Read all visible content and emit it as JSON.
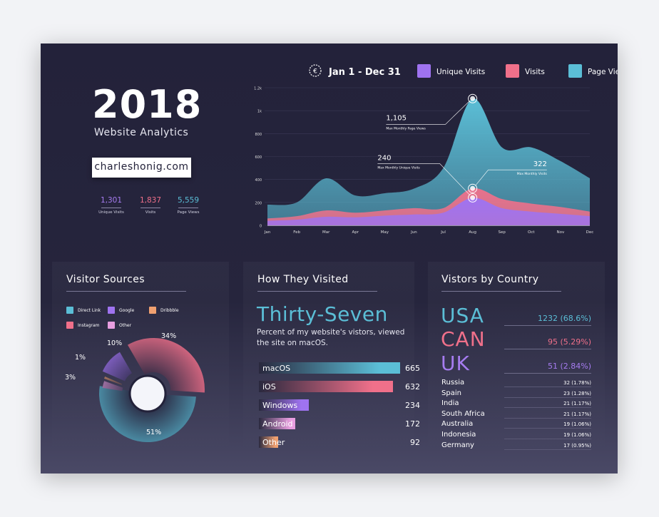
{
  "header": {
    "year": "2018",
    "subtitle": "Website Analytics",
    "domain": "charleshonig.com",
    "date_range": "Jan 1 - Dec 31"
  },
  "summary": [
    {
      "value": "1,301",
      "label": "Unique Visits",
      "color": "#a67cf0"
    },
    {
      "value": "1,837",
      "label": "Visits",
      "color": "#f0708a"
    },
    {
      "value": "5,559",
      "label": "Page Views",
      "color": "#5bbed6"
    }
  ],
  "legend": [
    {
      "label": "Unique Visits",
      "color": "#9f73f0"
    },
    {
      "label": "Visits",
      "color": "#f0708a"
    },
    {
      "label": "Page Views",
      "color": "#5bbed6"
    }
  ],
  "annotations": [
    {
      "value": "1,105",
      "label": "Max Monthly Page Views"
    },
    {
      "value": "240",
      "label": "Max Monthly Unique Visits"
    },
    {
      "value": "322",
      "label": "Max Monthly Visits"
    }
  ],
  "panels": {
    "sources_title": "Visitor Sources",
    "visited_title": "How They Visited",
    "country_title": "Vistors by Country"
  },
  "visited": {
    "headline": "Thirty-Seven",
    "description_line1": "Percent of my website's vistors, viewed",
    "description_line2": "the site on macOS."
  },
  "countries_top": [
    {
      "name": "USA",
      "value": "1232 (68.6%)",
      "color": "#5bbed6"
    },
    {
      "name": "CAN",
      "value": "95 (5.29%)",
      "color": "#f0708a"
    },
    {
      "name": "UK",
      "value": "51 (2.84%)",
      "color": "#a67cf0"
    }
  ],
  "countries_other": [
    {
      "name": "Russia",
      "value": "32 (1.78%)"
    },
    {
      "name": "Spain",
      "value": "23 (1.28%)"
    },
    {
      "name": "India",
      "value": "21 (1.17%)"
    },
    {
      "name": "South Africa",
      "value": "21 (1.17%)"
    },
    {
      "name": "Australia",
      "value": "19 (1.06%)"
    },
    {
      "name": "Indonesia",
      "value": "19 (1.06%)"
    },
    {
      "name": "Germany",
      "value": "17 (0.95%)"
    }
  ],
  "chart_data": [
    {
      "type": "area",
      "title": "Jan 1 - Dec 31",
      "categories": [
        "Jan",
        "Feb",
        "Mar",
        "Apr",
        "May",
        "Jun",
        "Jul",
        "Aug",
        "Sep",
        "Oct",
        "Nov",
        "Dec"
      ],
      "y_ticks": [
        "0",
        "200",
        "400",
        "600",
        "800",
        "1k",
        "1.2k"
      ],
      "ylim": [
        0,
        1200
      ],
      "series": [
        {
          "name": "Page Views",
          "color": "#5bbed6",
          "values": [
            180,
            200,
            410,
            260,
            280,
            320,
            500,
            1105,
            680,
            680,
            560,
            410
          ]
        },
        {
          "name": "Visits",
          "color": "#f0708a",
          "values": [
            60,
            80,
            130,
            110,
            130,
            150,
            150,
            322,
            230,
            190,
            160,
            120
          ]
        },
        {
          "name": "Unique Visits",
          "color": "#9f73f0",
          "values": [
            40,
            50,
            75,
            70,
            85,
            95,
            110,
            240,
            150,
            120,
            100,
            80
          ]
        }
      ]
    },
    {
      "type": "pie",
      "title": "Visitor Sources",
      "series": [
        {
          "name": "Direct Link",
          "value": 51,
          "label": "51%",
          "color": "#5bbed6"
        },
        {
          "name": "Instagram",
          "value": 34,
          "label": "34%",
          "color": "#f0708a"
        },
        {
          "name": "Google",
          "value": 10,
          "label": "10%",
          "color": "#9f73f0"
        },
        {
          "name": "Other",
          "value": 3,
          "label": "3%",
          "color": "#e89ee0"
        },
        {
          "name": "Dribbble",
          "value": 1,
          "label": "1%",
          "color": "#f0a070"
        }
      ],
      "legend": [
        {
          "name": "Direct Link",
          "color": "#5bbed6"
        },
        {
          "name": "Google",
          "color": "#9f73f0"
        },
        {
          "name": "Dribbble",
          "color": "#f0a070"
        },
        {
          "name": "Instagram",
          "color": "#f0708a"
        },
        {
          "name": "Other",
          "color": "#e89ee0"
        }
      ]
    },
    {
      "type": "bar",
      "title": "How They Visited",
      "categories": [
        "macOS",
        "iOS",
        "Windows",
        "Android",
        "Other"
      ],
      "values": [
        665,
        632,
        234,
        172,
        92
      ],
      "colors": [
        "#5bbed6",
        "#f0708a",
        "#9f73f0",
        "#e89ee0",
        "#f0a070"
      ]
    }
  ]
}
